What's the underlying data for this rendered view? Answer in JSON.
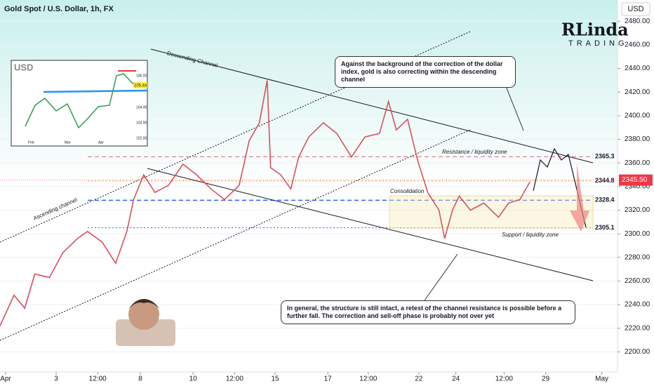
{
  "header": {
    "title": "Gold Spot / U.S. Dollar, 1h, FX",
    "currency": "USD"
  },
  "logo": {
    "name": "RLinda",
    "tagline": "TRADING"
  },
  "chart_data": {
    "type": "line",
    "x": [
      -5,
      7.5,
      17,
      26,
      39,
      51,
      64,
      73,
      86,
      98,
      108,
      114,
      123,
      133,
      145,
      158,
      170,
      183,
      195,
      208,
      217,
      226,
      233,
      236,
      245,
      254,
      261,
      270,
      283,
      295,
      308,
      320,
      333,
      341,
      348,
      358,
      367,
      376,
      386,
      391,
      398,
      404,
      414,
      426,
      439,
      448,
      458,
      467
    ],
    "series": [
      {
        "name": "Gold Spot / U.S. Dollar",
        "color": "#d8505c",
        "values": [
          2222,
          2248,
          2237,
          2266,
          2263,
          2284,
          2296,
          2302,
          2293,
          2275,
          2302,
          2329,
          2350,
          2335,
          2341,
          2359,
          2350,
          2338,
          2329,
          2341,
          2379,
          2394,
          2430,
          2356,
          2350,
          2338,
          2365,
          2382,
          2394,
          2385,
          2365,
          2382,
          2385,
          2412,
          2388,
          2397,
          2362,
          2335,
          2320,
          2296,
          2320,
          2332,
          2320,
          2326,
          2314,
          2326,
          2329,
          2344
        ]
      }
    ],
    "xlim": [
      -5,
      545
    ],
    "xticks": [
      {
        "value": 0,
        "label": "Apr"
      },
      {
        "value": 45,
        "label": "3"
      },
      {
        "value": 82,
        "label": "12:00"
      },
      {
        "value": 120,
        "label": "8"
      },
      {
        "value": 167,
        "label": "10"
      },
      {
        "value": 204,
        "label": "12:00"
      },
      {
        "value": 240,
        "label": "15"
      },
      {
        "value": 287,
        "label": "17"
      },
      {
        "value": 323,
        "label": "12:00"
      },
      {
        "value": 368,
        "label": "22"
      },
      {
        "value": 401,
        "label": "24"
      },
      {
        "value": 444,
        "label": "12:00"
      },
      {
        "value": 481,
        "label": "29"
      },
      {
        "value": 531,
        "label": "May"
      }
    ],
    "ylim": [
      2183,
      2498
    ],
    "yticks": [
      {
        "value": 2200,
        "label": "2200.00"
      },
      {
        "value": 2220,
        "label": "2220.00"
      },
      {
        "value": 2240,
        "label": "2240.00"
      },
      {
        "value": 2260,
        "label": "2260.00"
      },
      {
        "value": 2280,
        "label": "2280.00"
      },
      {
        "value": 2300,
        "label": "2300.00"
      },
      {
        "value": 2320,
        "label": "2320.00"
      },
      {
        "value": 2340,
        "label": "2340.00"
      },
      {
        "value": 2360,
        "label": "2360.00"
      },
      {
        "value": 2380,
        "label": "2380.00"
      },
      {
        "value": 2400,
        "label": "2400.00"
      },
      {
        "value": 2420,
        "label": "2420.00"
      },
      {
        "value": 2440,
        "label": "2440.00"
      },
      {
        "value": 2460,
        "label": "2460.00"
      },
      {
        "value": 2480,
        "label": "2480.00"
      }
    ],
    "last_price": {
      "value": 2345.5,
      "label": "2345.50"
    },
    "levels": [
      {
        "value": 2365.3,
        "color": "#e06070"
      },
      {
        "value": 2344.8,
        "color": "#f0a040"
      },
      {
        "value": 2328.4,
        "color": "#2962ff"
      },
      {
        "value": 2305.1,
        "color": "#2962ff"
      }
    ],
    "zone_labels": [
      "Resistance / liquidity zone",
      "Consolidation",
      "Support / liquidity zone"
    ],
    "channel_labels": [
      "Descending Channel",
      "Ascending channel"
    ],
    "annotations": [
      "Against the background of the correction of the dollar index, gold is also correcting within the descending channel",
      "In general, the structure is still intact, a retest of the channel resistance is possible before a further fall. The correction and sell-off phase is probably not over yet"
    ]
  },
  "inset": {
    "title": "USD",
    "last": "105.44",
    "yticks": [
      "106.00",
      "104.00",
      "103.00",
      "102.00"
    ],
    "xticks": [
      "Feb",
      "Mar",
      "Apr"
    ]
  }
}
